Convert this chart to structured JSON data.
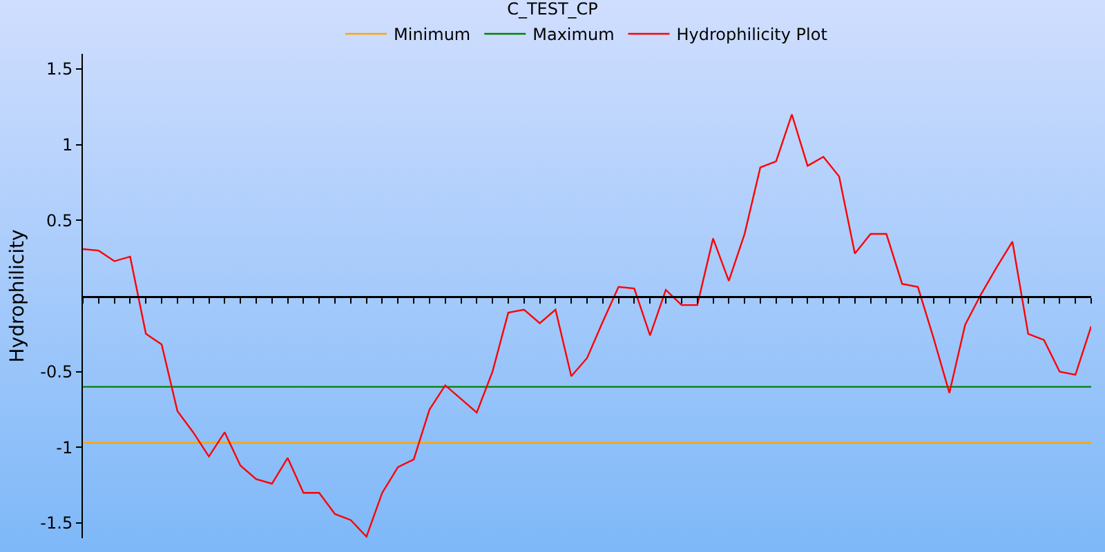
{
  "chart_data": {
    "type": "line",
    "title": "C_TEST_CP",
    "ylabel": "Hydrophilicity",
    "categories": [
      null,
      null,
      null,
      null,
      null,
      null,
      null,
      null,
      null,
      null,
      null,
      null,
      null,
      null,
      null,
      null,
      null,
      null,
      null,
      null,
      null,
      null,
      null,
      null,
      null,
      null,
      null,
      null,
      null,
      null,
      null,
      null,
      null,
      null,
      null,
      null,
      null,
      null,
      null,
      null,
      null,
      null,
      null,
      null,
      null,
      null,
      null,
      null,
      null,
      null,
      null,
      null,
      null,
      null,
      null,
      null,
      null,
      null,
      null,
      null,
      null,
      null,
      null,
      null,
      null
    ],
    "series": [
      {
        "name": "Minimum",
        "color": "#ffa500",
        "values": [
          -0.97,
          -0.97,
          -0.97,
          -0.97,
          -0.97,
          -0.97,
          -0.97,
          -0.97,
          -0.97,
          -0.97,
          -0.97,
          -0.97,
          -0.97,
          -0.97,
          -0.97,
          -0.97,
          -0.97,
          -0.97,
          -0.97,
          -0.97,
          -0.97,
          -0.97,
          -0.97,
          -0.97,
          -0.97,
          -0.97,
          -0.97,
          -0.97,
          -0.97,
          -0.97,
          -0.97,
          -0.97,
          -0.97,
          -0.97,
          -0.97,
          -0.97,
          -0.97,
          -0.97,
          -0.97,
          -0.97,
          -0.97,
          -0.97,
          -0.97,
          -0.97,
          -0.97,
          -0.97,
          -0.97,
          -0.97,
          -0.97,
          -0.97,
          -0.97,
          -0.97,
          -0.97,
          -0.97,
          -0.97,
          -0.97,
          -0.97,
          -0.97,
          -0.97,
          -0.97,
          -0.97,
          -0.97,
          -0.97,
          -0.97,
          -0.97
        ]
      },
      {
        "name": "Maximum",
        "color": "#008000",
        "values": [
          -0.6,
          -0.6,
          -0.6,
          -0.6,
          -0.6,
          -0.6,
          -0.6,
          -0.6,
          -0.6,
          -0.6,
          -0.6,
          -0.6,
          -0.6,
          -0.6,
          -0.6,
          -0.6,
          -0.6,
          -0.6,
          -0.6,
          -0.6,
          -0.6,
          -0.6,
          -0.6,
          -0.6,
          -0.6,
          -0.6,
          -0.6,
          -0.6,
          -0.6,
          -0.6,
          -0.6,
          -0.6,
          -0.6,
          -0.6,
          -0.6,
          -0.6,
          -0.6,
          -0.6,
          -0.6,
          -0.6,
          -0.6,
          -0.6,
          -0.6,
          -0.6,
          -0.6,
          -0.6,
          -0.6,
          -0.6,
          -0.6,
          -0.6,
          -0.6,
          -0.6,
          -0.6,
          -0.6,
          -0.6,
          -0.6,
          -0.6,
          -0.6,
          -0.6,
          -0.6,
          -0.6,
          -0.6,
          -0.6,
          -0.6,
          -0.6
        ]
      },
      {
        "name": "Hydrophilicity Plot",
        "color": "#ff0000",
        "values": [
          0.31,
          0.3,
          0.23,
          0.26,
          -0.25,
          -0.32,
          -0.76,
          -0.9,
          -1.06,
          -0.9,
          -1.12,
          -1.21,
          -1.24,
          -1.07,
          -1.3,
          -1.3,
          -1.44,
          -1.48,
          -1.59,
          -1.3,
          -1.13,
          -1.08,
          -0.75,
          -0.59,
          -0.68,
          -0.77,
          -0.5,
          -0.11,
          -0.09,
          -0.18,
          -0.09,
          -0.53,
          -0.41,
          -0.17,
          0.06,
          0.05,
          -0.26,
          0.04,
          -0.06,
          -0.06,
          0.38,
          0.1,
          0.41,
          0.85,
          0.89,
          1.2,
          0.86,
          0.92,
          0.79,
          0.28,
          0.41,
          0.41,
          0.08,
          0.06,
          -0.28,
          -0.64,
          -0.19,
          0.01,
          0.19,
          0.36,
          -0.25,
          -0.29,
          -0.5,
          -0.52,
          -0.2
        ]
      }
    ],
    "ylim": [
      -1.6,
      1.6
    ],
    "yticks": [
      -1.5,
      -1,
      -0.5,
      0.5,
      1,
      1.5
    ],
    "grid": false,
    "legend": "top",
    "tick_labels": "y",
    "marker": "none",
    "line_style": "solid"
  }
}
